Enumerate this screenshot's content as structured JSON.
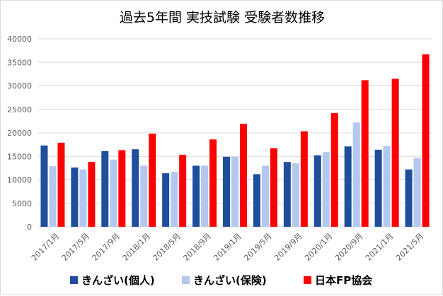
{
  "chart_data": {
    "type": "bar",
    "title": "過去5年間 実技試験 受験者数推移",
    "categories": [
      "2017/1月",
      "2017/5月",
      "2017/9月",
      "2018/1月",
      "2018/5月",
      "2018/9月",
      "2019/1月",
      "2019/5月",
      "2019/9月",
      "2020/1月",
      "2020/9月",
      "2021/1月",
      "2021/5月"
    ],
    "series": [
      {
        "name": "きんざい(個人)",
        "color": "#1f4e9c",
        "values": [
          17300,
          12600,
          16100,
          16500,
          11400,
          13000,
          14900,
          11200,
          13800,
          15200,
          17100,
          16400,
          12200
        ]
      },
      {
        "name": "きんざい(保険)",
        "color": "#b4c7ee",
        "values": [
          12900,
          12200,
          14300,
          13000,
          11700,
          13000,
          14900,
          13000,
          13500,
          15900,
          22200,
          17200,
          14600
        ]
      },
      {
        "name": "日本FP協会",
        "color": "#ff0000",
        "values": [
          17900,
          13800,
          16300,
          19800,
          15300,
          18600,
          21900,
          16700,
          20300,
          24200,
          31200,
          31500,
          36700
        ]
      }
    ],
    "ylim": [
      0,
      40000
    ],
    "yticks": [
      "0",
      "5000",
      "10000",
      "15000",
      "20000",
      "25000",
      "30000",
      "35000",
      "40000"
    ],
    "grid": true,
    "legend_position": "bottom"
  }
}
